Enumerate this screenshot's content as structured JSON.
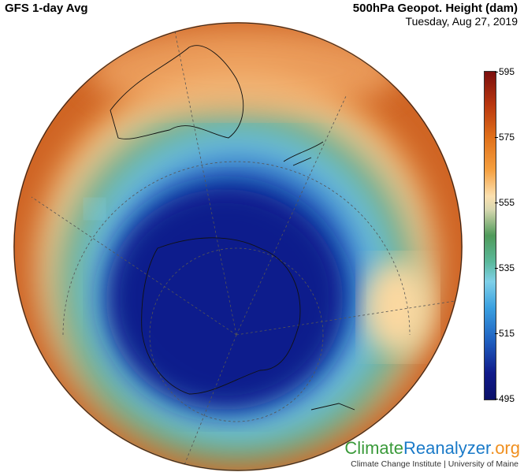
{
  "header": {
    "model_title": "GFS 1-day Avg",
    "variable_title": "500hPa Geopot. Height (dam)",
    "date": "Tuesday, Aug 27, 2019"
  },
  "colorbar": {
    "ticks": [
      "595",
      "575",
      "555",
      "535",
      "515",
      "495"
    ],
    "min": 495,
    "max": 595
  },
  "branding": {
    "part1": "Climate",
    "part2": "Reanalyzer",
    "part3": ".org",
    "subtitle": "Climate Change Institute | University of Maine",
    "colors": {
      "green": "#3a9a3a",
      "blue": "#1a7ac8",
      "orange": "#f09020"
    }
  }
}
